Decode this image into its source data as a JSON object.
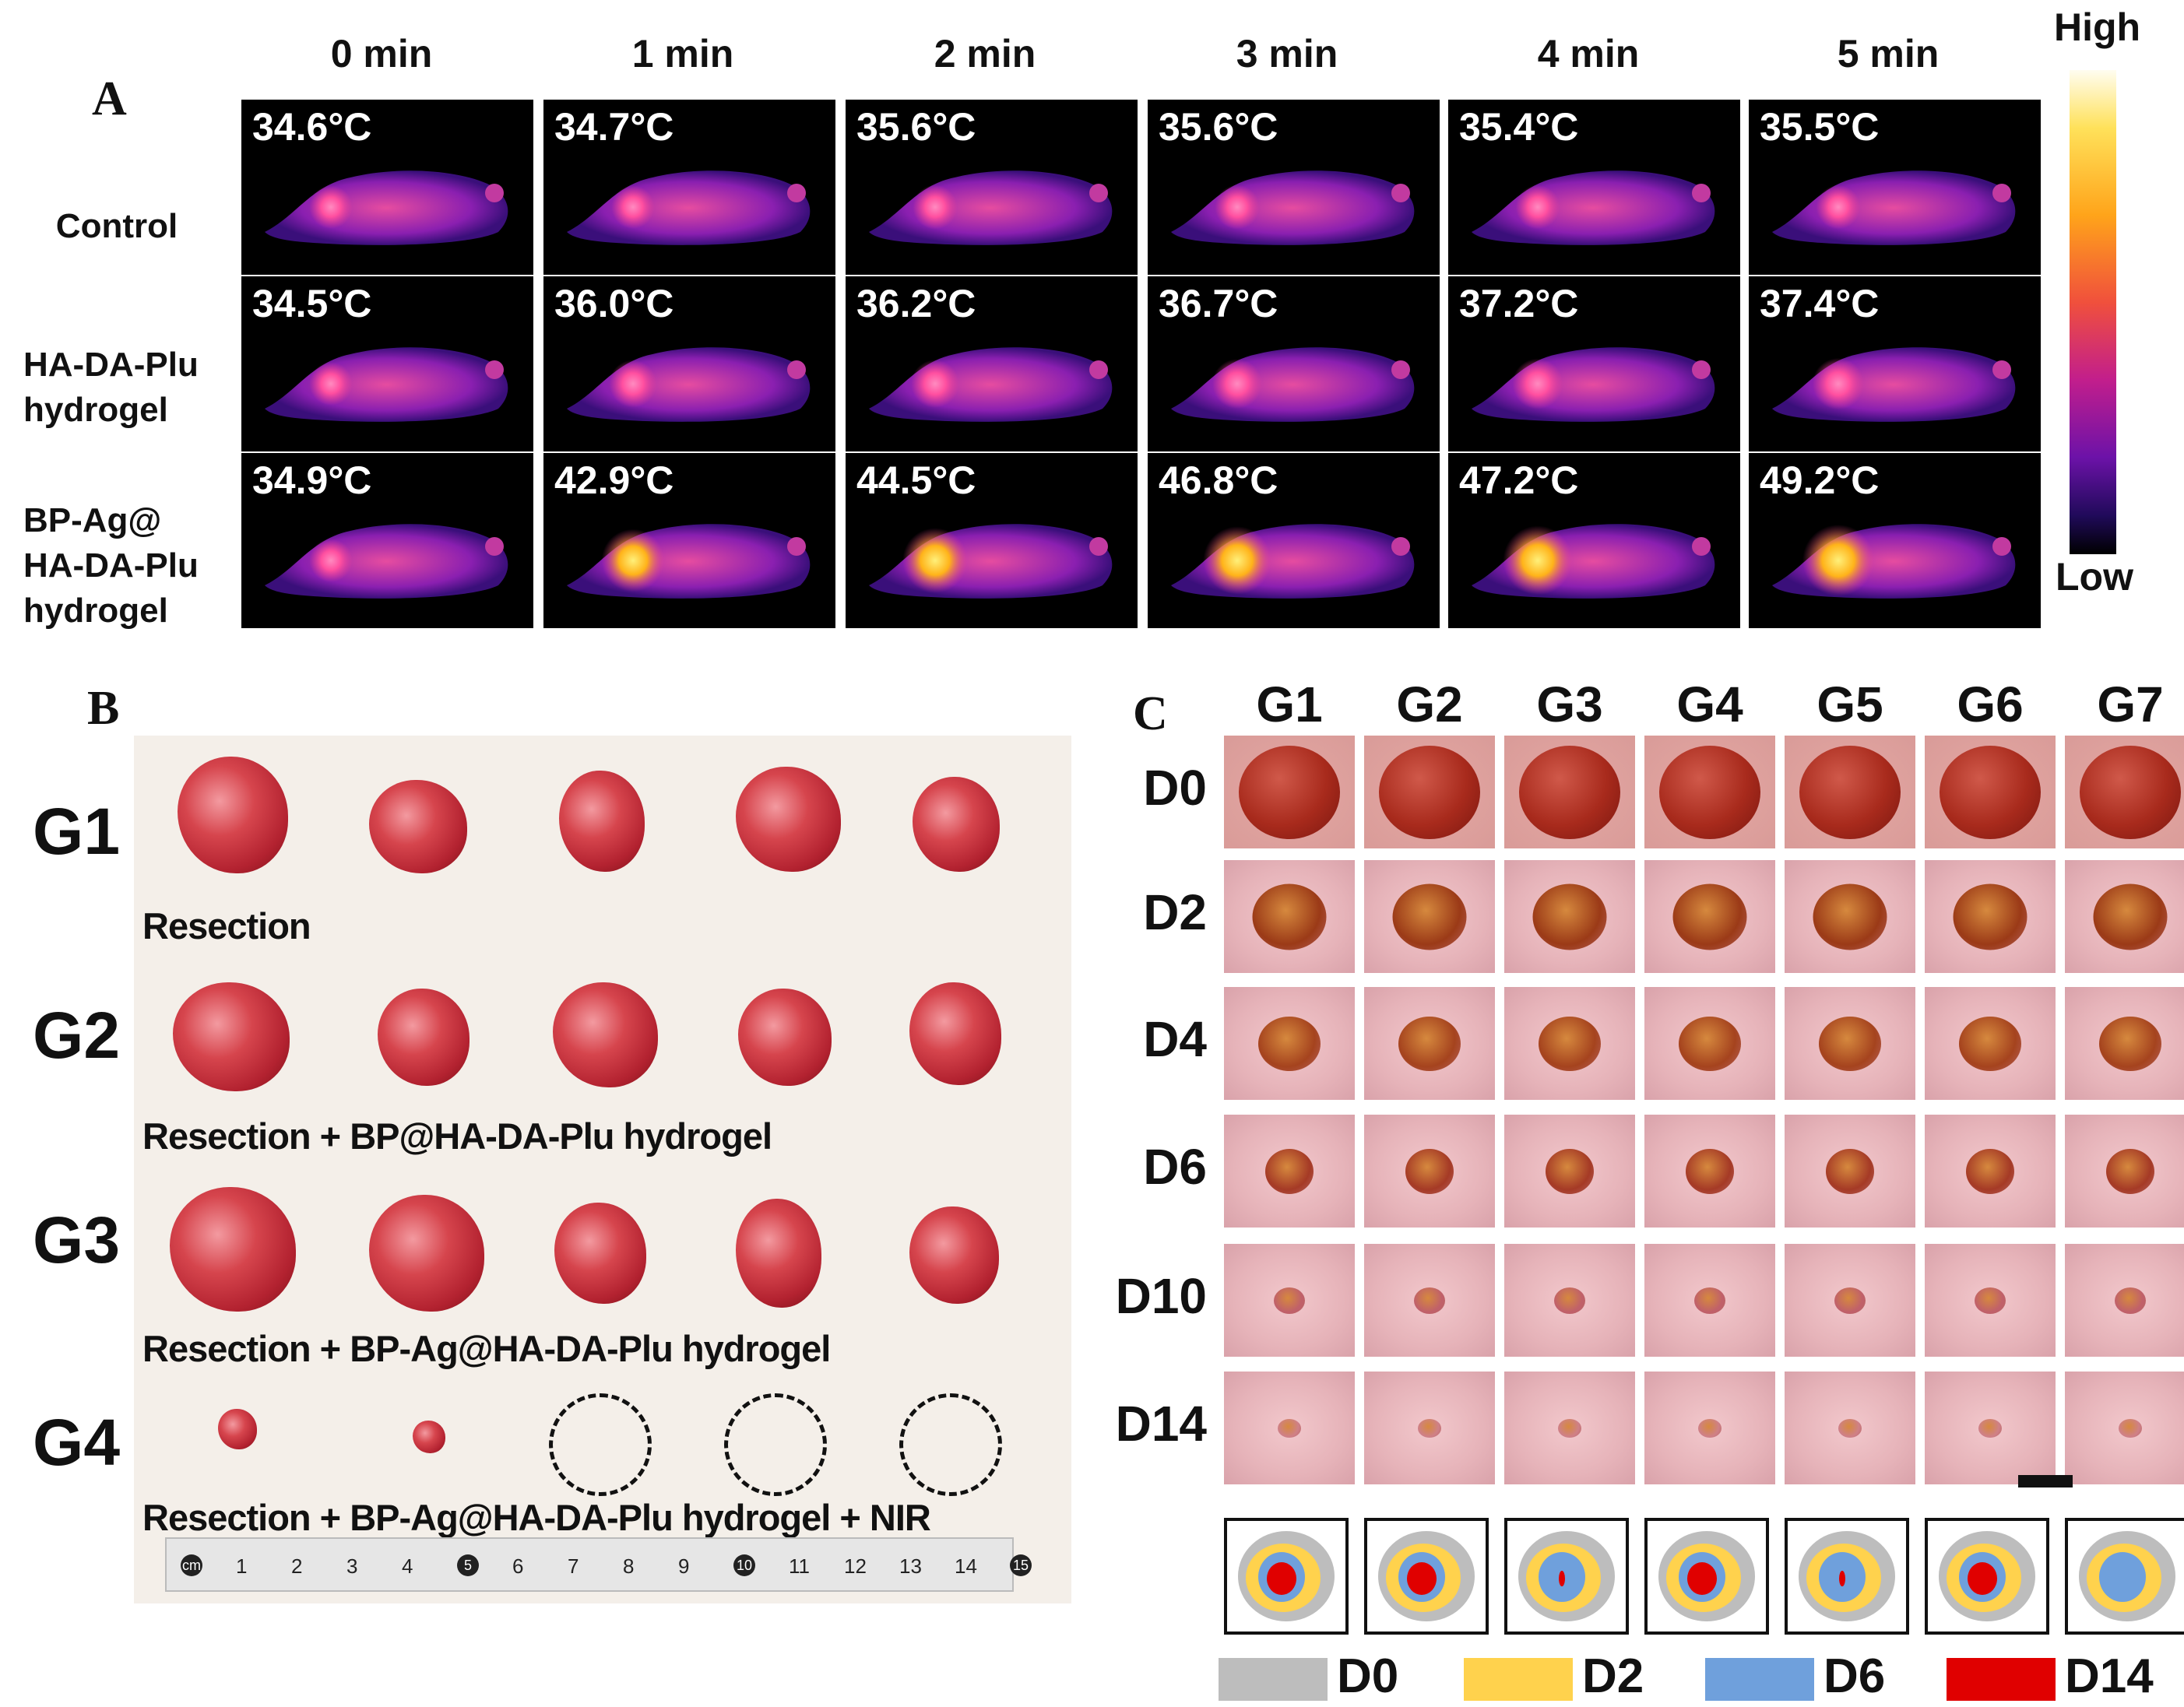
{
  "panelA": {
    "letter": "A",
    "times": [
      "0 min",
      "1 min",
      "2 min",
      "3 min",
      "4 min",
      "5 min"
    ],
    "colorbar": {
      "high": "High",
      "low": "Low"
    },
    "rows": [
      {
        "label": "Control",
        "temps": [
          "34.6°C",
          "34.7°C",
          "35.6°C",
          "35.6°C",
          "35.4°C",
          "35.5°C"
        ]
      },
      {
        "label": "HA-DA-Plu\nhydrogel",
        "temps": [
          "34.5°C",
          "36.0°C",
          "36.2°C",
          "36.7°C",
          "37.2°C",
          "37.4°C"
        ]
      },
      {
        "label": "BP-Ag@\nHA-DA-Plu\nhydrogel",
        "temps": [
          "34.9°C",
          "42.9°C",
          "44.5°C",
          "46.8°C",
          "47.2°C",
          "49.2°C"
        ]
      }
    ]
  },
  "panelB": {
    "letter": "B",
    "groups": [
      {
        "label": "G1",
        "caption": "Resection"
      },
      {
        "label": "G2",
        "caption": "Resection + BP@HA-DA-Plu hydrogel"
      },
      {
        "label": "G3",
        "caption": "Resection + BP-Ag@HA-DA-Plu hydrogel"
      },
      {
        "label": "G4",
        "caption": "Resection + BP-Ag@HA-DA-Plu hydrogel + NIR"
      }
    ],
    "ruler_numbers": [
      "cm",
      "1",
      "2",
      "3",
      "4",
      "5",
      "6",
      "7",
      "8",
      "9",
      "10",
      "11",
      "12",
      "13",
      "14",
      "15"
    ]
  },
  "panelC": {
    "letter": "C",
    "groups": [
      "G1",
      "G2",
      "G3",
      "G4",
      "G5",
      "G6",
      "G7"
    ],
    "days": [
      "D0",
      "D2",
      "D4",
      "D6",
      "D10",
      "D14"
    ],
    "legend": [
      {
        "label": "D0",
        "color": "#bdbdbd"
      },
      {
        "label": "D2",
        "color": "#ffd24d"
      },
      {
        "label": "D6",
        "color": "#6fa0dc"
      },
      {
        "label": "D14",
        "color": "#e00000"
      }
    ]
  }
}
